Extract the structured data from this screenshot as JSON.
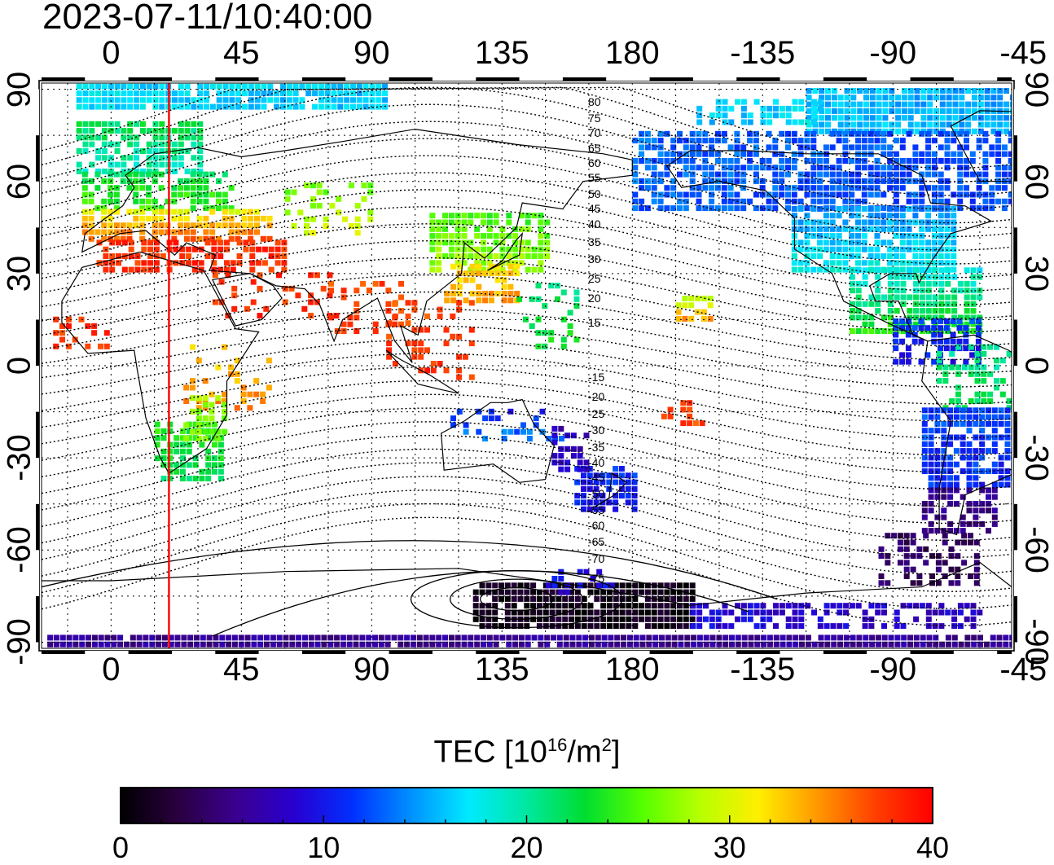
{
  "timestamp": "2023-07-11/10:40:00",
  "axes": {
    "longitude_ticks": [
      "0",
      "45",
      "90",
      "135",
      "180",
      "-135",
      "-90",
      "-45"
    ],
    "latitude_ticks": [
      "90",
      "60",
      "30",
      "0",
      "-30",
      "-60",
      "-90"
    ],
    "lon_range_deg": [
      -24,
      311
    ],
    "lat_range_deg": [
      -92,
      92
    ],
    "grid": "dotted"
  },
  "magnetic_latitude_labels": [
    "80",
    "75",
    "70",
    "65",
    "60",
    "55",
    "50",
    "45",
    "40",
    "35",
    "30",
    "25",
    "20",
    "15",
    "-15",
    "-20",
    "-25",
    "-30",
    "-35",
    "-40",
    "-45",
    "-50",
    "-55",
    "-60",
    "-65",
    "-70",
    "-75"
  ],
  "marker_line": {
    "longitude_deg": 20,
    "color": "#ff0000"
  },
  "colorbar": {
    "title_main": "TEC  [10",
    "title_exp1": "16",
    "title_mid": "/m",
    "title_exp2": "2",
    "title_end": "]",
    "ticks": [
      "0",
      "10",
      "20",
      "30",
      "40"
    ],
    "min": 0,
    "max": 40,
    "colors": [
      "#000000",
      "#2a0040",
      "#3a0090",
      "#2800d0",
      "#0030ff",
      "#0090ff",
      "#00eaff",
      "#00e8a0",
      "#00dd30",
      "#55ff00",
      "#b8ff00",
      "#ffee00",
      "#ff9900",
      "#ff4000",
      "#ff0000"
    ]
  }
}
